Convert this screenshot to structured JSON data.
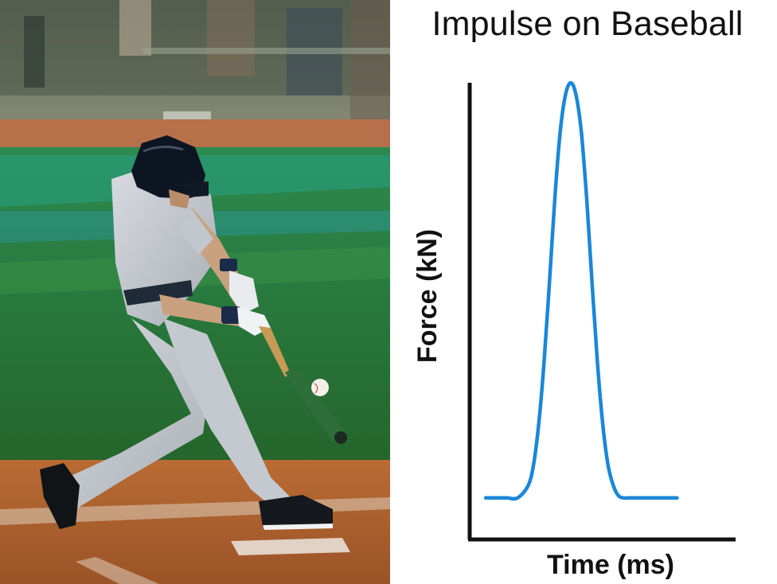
{
  "chart_data": {
    "type": "line",
    "title": "Impulse on Baseball",
    "xlabel": "Time (ms)",
    "ylabel": "Force (kN)",
    "grid": false,
    "legend": "none",
    "ticks": "none",
    "series": [
      {
        "color": "#1a87d9",
        "x": [
          0,
          2,
          4,
          6,
          8,
          9,
          10,
          11,
          12,
          13,
          14,
          15,
          16,
          17,
          18,
          19,
          20,
          21,
          22,
          23,
          24,
          25,
          26,
          27,
          28,
          30,
          32,
          34,
          36
        ],
        "y": [
          0,
          0,
          0,
          0,
          0.03,
          0.08,
          0.18,
          0.33,
          0.52,
          0.72,
          0.88,
          0.97,
          1.0,
          0.97,
          0.88,
          0.72,
          0.52,
          0.33,
          0.18,
          0.08,
          0.03,
          0.005,
          0,
          0,
          0,
          0,
          0,
          0,
          0
        ]
      }
    ],
    "xlim": [
      -3,
      47
    ],
    "ylim": [
      -0.1,
      1.0
    ]
  },
  "photo": {
    "subject": "baseball batter hitting ball"
  }
}
